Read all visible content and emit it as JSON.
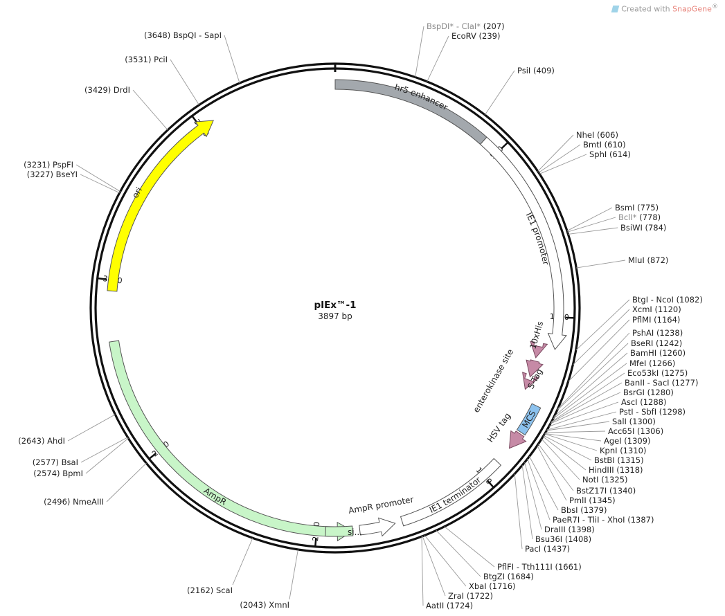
{
  "credit": {
    "prefix": "Created with",
    "brand": "SnapGene",
    "mark": "®"
  },
  "plasmid": {
    "name": "pIEx™-1",
    "size_label": "3897 bp",
    "length": 3897
  },
  "ticks": [
    {
      "label": "500",
      "pos": 500
    },
    {
      "label": "1000",
      "pos": 1000
    },
    {
      "label": "1500",
      "pos": 1500
    },
    {
      "label": "2000",
      "pos": 2000
    },
    {
      "label": "2500",
      "pos": 2500
    },
    {
      "label": "3000",
      "pos": 3000
    },
    {
      "label": "3500",
      "pos": 3500
    }
  ],
  "features": [
    {
      "name": "hr5 enhancer",
      "color": "#a3a8ad",
      "type": "band"
    },
    {
      "name": "IE1 promoter",
      "color": "#ffffff",
      "type": "arrow"
    },
    {
      "name": "10xHis",
      "color": "#c68aa6",
      "type": "small"
    },
    {
      "name": "S-Tag",
      "color": "#c68aa6",
      "type": "small"
    },
    {
      "name": "enterokinase site",
      "color": "#c68aa6",
      "type": "small"
    },
    {
      "name": "MCS",
      "color": "#8cc2ee",
      "type": "band"
    },
    {
      "name": "HSV tag",
      "color": "#c68aa6",
      "type": "small"
    },
    {
      "name": "IE1 terminator",
      "color": "#ffffff",
      "type": "band"
    },
    {
      "name": "AmpR promoter",
      "color": "#ffffff",
      "type": "arrow"
    },
    {
      "name": "AmpR",
      "color": "#c8f5c8",
      "type": "arrow"
    },
    {
      "name": "si...",
      "color": "#c8f5c8",
      "type": "band"
    },
    {
      "name": "ori",
      "color": "#ffff00",
      "type": "arrow"
    }
  ],
  "sites_right": [
    {
      "name": "BspDI* - ClaI*",
      "pos": "(207)",
      "gray": true
    },
    {
      "name": "EcoRV",
      "pos": "(239)"
    },
    {
      "name": "PsiI",
      "pos": "(409)"
    },
    {
      "name": "NheI",
      "pos": "(606)"
    },
    {
      "name": "BmtI",
      "pos": "(610)"
    },
    {
      "name": "SphI",
      "pos": "(614)"
    },
    {
      "name": "BsmI",
      "pos": "(775)"
    },
    {
      "name": "BclI*",
      "pos": "(778)",
      "gray": true
    },
    {
      "name": "BsiWI",
      "pos": "(784)"
    },
    {
      "name": "MluI",
      "pos": "(872)"
    },
    {
      "name": "BtgI - NcoI",
      "pos": "(1082)"
    },
    {
      "name": "XcmI",
      "pos": "(1120)"
    },
    {
      "name": "PflMI",
      "pos": "(1164)"
    },
    {
      "name": "PshAI",
      "pos": "(1238)"
    },
    {
      "name": "BseRI",
      "pos": "(1242)"
    },
    {
      "name": "BamHI",
      "pos": "(1260)"
    },
    {
      "name": "MfeI",
      "pos": "(1266)"
    },
    {
      "name": "Eco53kI",
      "pos": "(1275)"
    },
    {
      "name": "BanII - SacI",
      "pos": "(1277)"
    },
    {
      "name": "BsrGI",
      "pos": "(1280)"
    },
    {
      "name": "AscI",
      "pos": "(1288)"
    },
    {
      "name": "PstI - SbfI",
      "pos": "(1298)"
    },
    {
      "name": "SalI",
      "pos": "(1300)"
    },
    {
      "name": "Acc65I",
      "pos": "(1306)"
    },
    {
      "name": "AgeI",
      "pos": "(1309)"
    },
    {
      "name": "KpnI",
      "pos": "(1310)"
    },
    {
      "name": "BstBI",
      "pos": "(1315)"
    },
    {
      "name": "HindIII",
      "pos": "(1318)"
    },
    {
      "name": "NotI",
      "pos": "(1325)"
    },
    {
      "name": "BstZ17I",
      "pos": "(1340)"
    },
    {
      "name": "PmlI",
      "pos": "(1345)"
    },
    {
      "name": "BbsI",
      "pos": "(1379)"
    },
    {
      "name": "PaeR7I - TliI - XhoI",
      "pos": "(1387)"
    },
    {
      "name": "DraIII",
      "pos": "(1398)"
    },
    {
      "name": "Bsu36I",
      "pos": "(1408)"
    },
    {
      "name": "PacI",
      "pos": "(1437)"
    },
    {
      "name": "PflFI - Tth111I",
      "pos": "(1661)"
    },
    {
      "name": "BtgZI",
      "pos": "(1684)"
    },
    {
      "name": "XbaI",
      "pos": "(1716)"
    },
    {
      "name": "ZraI",
      "pos": "(1722)"
    },
    {
      "name": "AatII",
      "pos": "(1724)"
    }
  ],
  "sites_left": [
    {
      "name": "BspQI - SapI",
      "pos": "(3648)"
    },
    {
      "name": "PciI",
      "pos": "(3531)"
    },
    {
      "name": "DrdI",
      "pos": "(3429)"
    },
    {
      "name": "PspFI",
      "pos": "(3231)"
    },
    {
      "name": "BseYI",
      "pos": "(3227)"
    },
    {
      "name": "AhdI",
      "pos": "(2643)"
    },
    {
      "name": "BsaI",
      "pos": "(2577)"
    },
    {
      "name": "BpmI",
      "pos": "(2574)"
    },
    {
      "name": "NmeAIII",
      "pos": "(2496)"
    },
    {
      "name": "ScaI",
      "pos": "(2162)"
    },
    {
      "name": "XmnI",
      "pos": "(2043)"
    }
  ]
}
